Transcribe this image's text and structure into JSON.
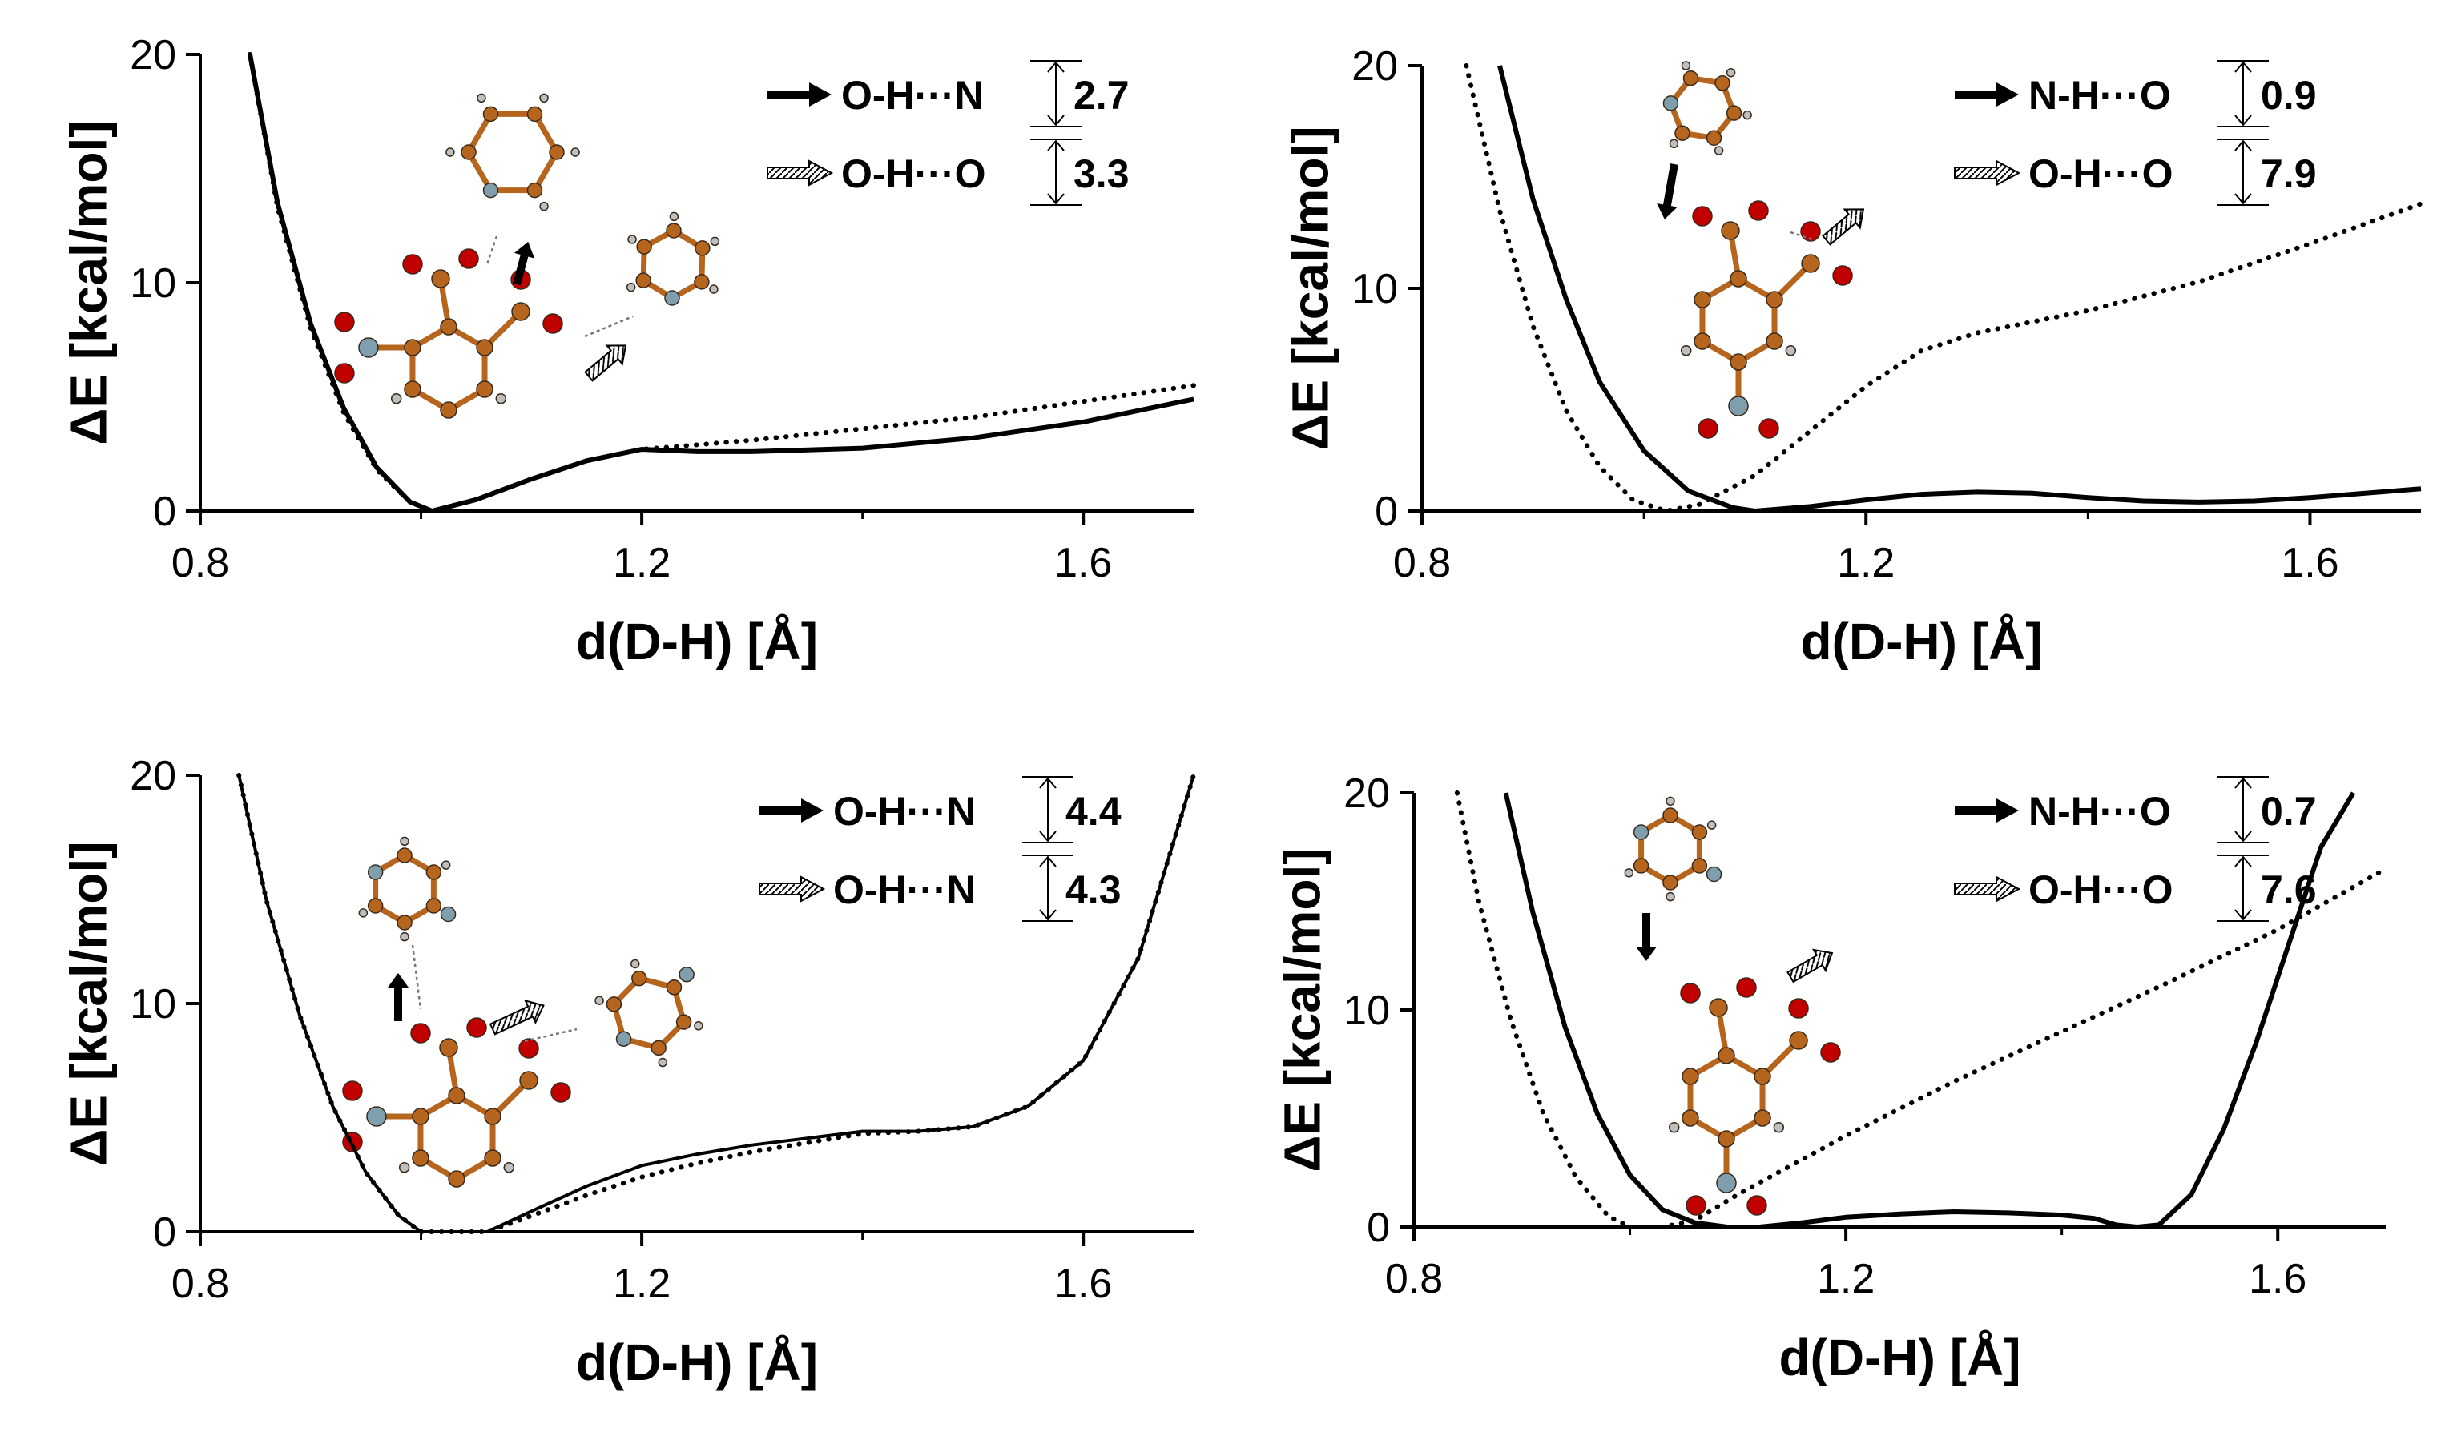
{
  "chart_data": [
    {
      "type": "line",
      "panel": "top-left",
      "xlabel": "d(D-H) [Å]",
      "ylabel": "ΔE [kcal/mol]",
      "xlim": [
        0.8,
        1.7
      ],
      "ylim": [
        0,
        20
      ],
      "xticks": [
        "0.8",
        "1.2",
        "1.6"
      ],
      "yticks": [
        "0",
        "10",
        "20"
      ],
      "series": [
        {
          "name": "O-H···N",
          "style": "solid",
          "barrier": "2.7",
          "x": [
            0.845,
            0.87,
            0.9,
            0.93,
            0.96,
            0.99,
            1.01,
            1.05,
            1.1,
            1.15,
            1.2,
            1.25,
            1.3,
            1.4,
            1.5,
            1.6,
            1.7
          ],
          "y": [
            20,
            13.5,
            8.2,
            4.5,
            1.9,
            0.4,
            0,
            0.5,
            1.4,
            2.2,
            2.7,
            2.6,
            2.6,
            2.75,
            3.2,
            3.9,
            4.9
          ]
        },
        {
          "name": "O-H···O",
          "style": "dotted",
          "barrier": "3.3",
          "x": [
            0.845,
            0.87,
            0.9,
            0.93,
            0.96,
            0.99,
            1.01,
            1.05,
            1.1,
            1.15,
            1.2,
            1.25,
            1.3,
            1.4,
            1.5,
            1.6,
            1.7
          ],
          "y": [
            20,
            13.3,
            8.0,
            4.3,
            1.8,
            0.4,
            0,
            0.5,
            1.4,
            2.2,
            2.7,
            2.9,
            3.1,
            3.6,
            4.1,
            4.8,
            5.5
          ]
        }
      ]
    },
    {
      "type": "line",
      "panel": "top-right",
      "xlabel": "d(D-H) [Å]",
      "ylabel": "ΔE [kcal/mol]",
      "xlim": [
        0.8,
        1.7
      ],
      "ylim": [
        0,
        20
      ],
      "xticks": [
        "0.8",
        "1.2",
        "1.6"
      ],
      "yticks": [
        "0",
        "10",
        "20"
      ],
      "series": [
        {
          "name": "N-H···O",
          "style": "solid",
          "barrier": "0.9",
          "x": [
            0.87,
            0.9,
            0.93,
            0.96,
            1.0,
            1.04,
            1.08,
            1.1,
            1.15,
            1.2,
            1.25,
            1.3,
            1.35,
            1.4,
            1.45,
            1.5,
            1.55,
            1.6,
            1.65,
            1.7
          ],
          "y": [
            20,
            14,
            9.5,
            5.8,
            2.7,
            0.9,
            0.15,
            0,
            0.2,
            0.5,
            0.75,
            0.85,
            0.8,
            0.6,
            0.45,
            0.4,
            0.45,
            0.6,
            0.8,
            1.0
          ]
        },
        {
          "name": "O-H···O",
          "style": "dotted",
          "barrier": "7.9",
          "x": [
            0.84,
            0.87,
            0.9,
            0.93,
            0.96,
            0.99,
            1.02,
            1.05,
            1.1,
            1.15,
            1.2,
            1.25,
            1.3,
            1.35,
            1.4,
            1.5,
            1.6,
            1.7
          ],
          "y": [
            20,
            13.5,
            8.3,
            4.5,
            2.0,
            0.5,
            0,
            0.3,
            1.6,
            3.6,
            5.6,
            7.2,
            8.0,
            8.5,
            9.0,
            10.3,
            12.0,
            13.8
          ]
        }
      ]
    },
    {
      "type": "line",
      "panel": "bottom-left",
      "xlabel": "d(D-H) [Å]",
      "ylabel": "ΔE [kcal/mol]",
      "xlim": [
        0.8,
        1.7
      ],
      "ylim": [
        0,
        20
      ],
      "xticks": [
        "0.8",
        "1.2",
        "1.6"
      ],
      "yticks": [
        "0",
        "10",
        "20"
      ],
      "series": [
        {
          "name": "O-H···N",
          "style": "solid",
          "barrier": "4.4",
          "x": [
            0.835,
            0.86,
            0.89,
            0.92,
            0.95,
            0.98,
            1.0,
            1.03,
            1.06,
            1.1,
            1.15,
            1.2,
            1.25,
            1.3,
            1.35,
            1.4,
            1.45,
            1.5,
            1.55,
            1.6,
            1.65,
            1.7
          ],
          "y": [
            20,
            14.5,
            9.5,
            5.5,
            2.6,
            0.7,
            0,
            0,
            0,
            0.9,
            2.0,
            2.9,
            3.4,
            3.8,
            4.1,
            4.4,
            4.4,
            4.6,
            5.5,
            7.5,
            12.0,
            20
          ]
        },
        {
          "name": "O-H···N",
          "style": "dotted",
          "barrier": "4.3",
          "x": [
            0.835,
            0.86,
            0.89,
            0.92,
            0.95,
            0.98,
            1.0,
            1.03,
            1.06,
            1.1,
            1.15,
            1.2,
            1.25,
            1.3,
            1.35,
            1.4,
            1.45,
            1.5,
            1.55,
            1.6,
            1.65,
            1.7
          ],
          "y": [
            20,
            14.5,
            9.5,
            5.5,
            2.6,
            0.7,
            0,
            0,
            0,
            0.7,
            1.6,
            2.4,
            3.0,
            3.5,
            3.9,
            4.3,
            4.4,
            4.6,
            5.5,
            7.5,
            12.0,
            20
          ]
        }
      ]
    },
    {
      "type": "line",
      "panel": "bottom-right",
      "xlabel": "d(D-H) [Å]",
      "ylabel": "ΔE [kcal/mol]",
      "xlim": [
        0.8,
        1.7
      ],
      "ylim": [
        0,
        20
      ],
      "xticks": [
        "0.8",
        "1.2",
        "1.6"
      ],
      "yticks": [
        "0",
        "10",
        "20"
      ],
      "series": [
        {
          "name": "N-H···O",
          "style": "solid",
          "barrier": "0.7",
          "x": [
            0.885,
            0.91,
            0.94,
            0.97,
            1.0,
            1.03,
            1.06,
            1.09,
            1.12,
            1.16,
            1.2,
            1.25,
            1.3,
            1.35,
            1.4,
            1.43,
            1.45,
            1.47,
            1.49,
            1.52,
            1.55,
            1.58,
            1.61,
            1.64,
            1.67
          ],
          "y": [
            20,
            14.5,
            9.2,
            5.2,
            2.4,
            0.8,
            0.2,
            0,
            0,
            0.2,
            0.45,
            0.6,
            0.7,
            0.65,
            0.55,
            0.4,
            0.1,
            0,
            0.1,
            1.5,
            4.5,
            8.5,
            13.0,
            17.5,
            20
          ]
        },
        {
          "name": "O-H···O",
          "style": "dotted",
          "barrier": "7.6",
          "x": [
            0.84,
            0.86,
            0.89,
            0.92,
            0.95,
            0.98,
            1.0,
            1.03,
            1.06,
            1.1,
            1.2,
            1.3,
            1.4,
            1.5,
            1.6,
            1.7
          ],
          "y": [
            20,
            15,
            9.5,
            5.2,
            2.3,
            0.5,
            0,
            0,
            0.3,
            1.5,
            4.2,
            6.7,
            9.0,
            11.3,
            13.7,
            16.5
          ]
        }
      ]
    }
  ],
  "colors": {
    "ink": "#000000",
    "carbon": "#b5651d",
    "oxygen": "#c00000",
    "nitrogen": "#7f9fae",
    "hydrogen": "#bfbfbf"
  }
}
